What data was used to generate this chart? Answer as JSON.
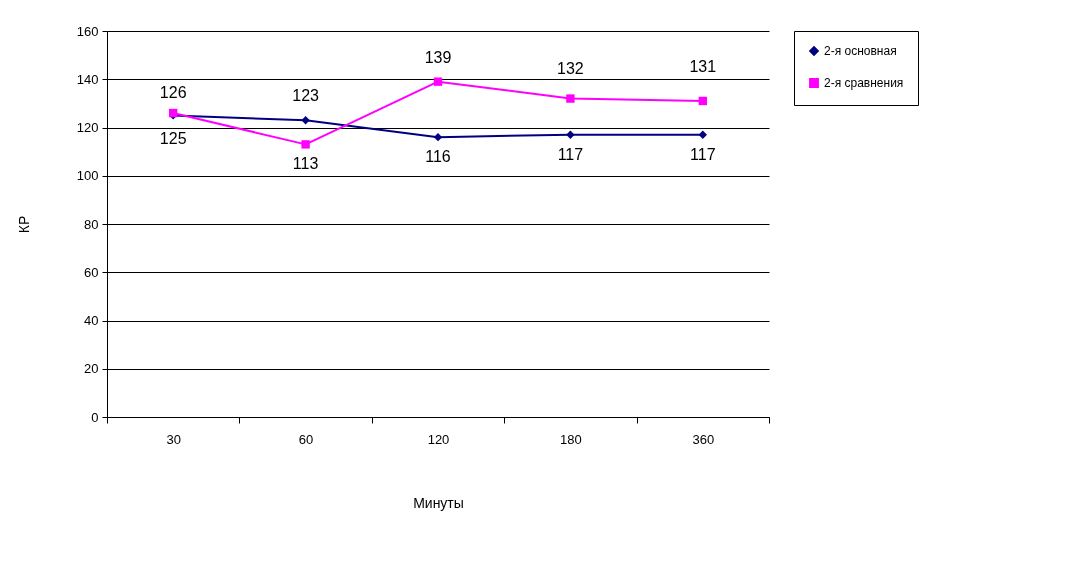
{
  "chart_data": {
    "type": "line",
    "xlabel": "Минуты",
    "ylabel": "КР",
    "categories": [
      "30",
      "60",
      "120",
      "180",
      "360"
    ],
    "series": [
      {
        "name": "2-я основная",
        "color": "#000080",
        "marker": "diamond",
        "values": [
          125,
          123,
          116,
          117,
          117
        ]
      },
      {
        "name": "2-я сравнения",
        "color": "#ff00ff",
        "marker": "square",
        "values": [
          126,
          113,
          139,
          132,
          131
        ]
      }
    ],
    "ylim": [
      0,
      160
    ],
    "yticks": [
      0,
      20,
      40,
      60,
      80,
      100,
      120,
      140,
      160
    ],
    "grid": "y",
    "legend": "right",
    "data_labels": true
  }
}
